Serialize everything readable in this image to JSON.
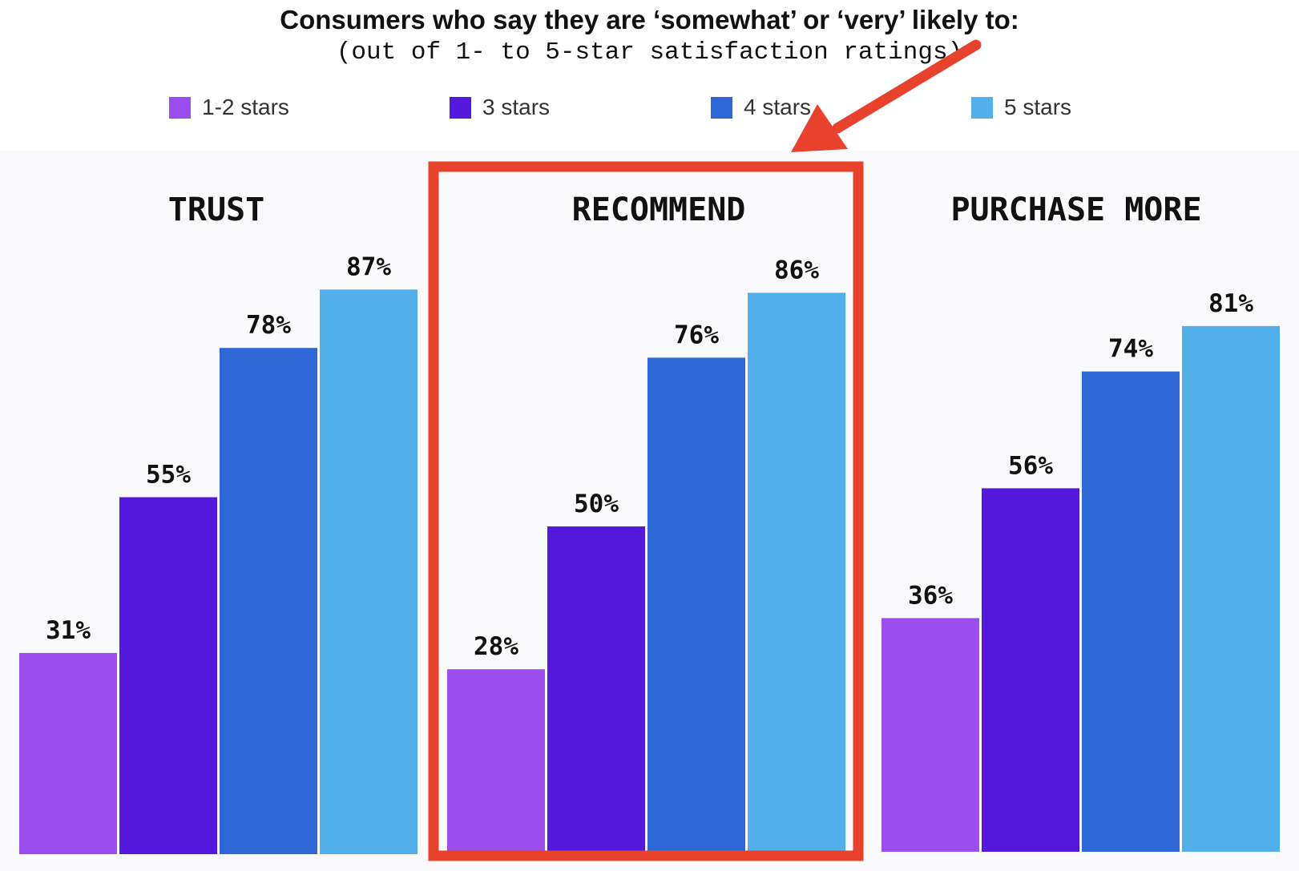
{
  "chart_data": {
    "type": "bar",
    "title": "Consumers who say they are ‘somewhat’ or ‘very’ likely to:",
    "subtitle": "(out of 1- to 5-star satisfaction ratings)",
    "categories": [
      "TRUST",
      "RECOMMEND",
      "PURCHASE MORE"
    ],
    "series": [
      {
        "name": "1-2 stars",
        "color": "#9b4ded",
        "values": [
          31,
          28,
          36
        ]
      },
      {
        "name": "3 stars",
        "color": "#5419dd",
        "values": [
          55,
          50,
          56
        ]
      },
      {
        "name": "4 stars",
        "color": "#2e67d6",
        "values": [
          78,
          76,
          74
        ]
      },
      {
        "name": "5 stars",
        "color": "#52afe9",
        "values": [
          87,
          86,
          81
        ]
      }
    ],
    "value_suffix": "%",
    "ylim": [
      0,
      100
    ],
    "grid": false,
    "legend_position": "top",
    "highlight": {
      "category": "RECOMMEND",
      "color": "#e8412c"
    }
  }
}
